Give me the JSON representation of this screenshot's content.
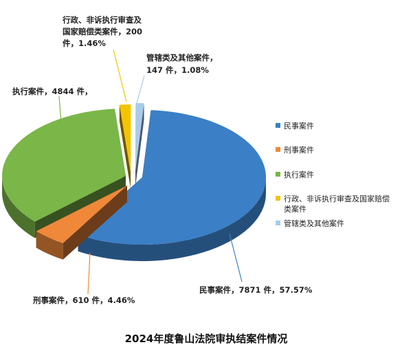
{
  "chart_data": {
    "type": "pie",
    "title": "2024年度鲁山法院审执结案件情况",
    "slices": [
      {
        "name": "民事案件",
        "value": 7871,
        "percent": 57.57,
        "color": "#3b7fc6",
        "label_lines": [
          "民事案件，7871 件，57.57%"
        ]
      },
      {
        "name": "刑事案件",
        "value": 610,
        "percent": 4.46,
        "color": "#f0883a",
        "label_lines": [
          "刑事案件，610 件，4.46%"
        ]
      },
      {
        "name": "执行案件",
        "value": 4844,
        "percent": 35.43,
        "color": "#7ab648",
        "label_lines": [
          "执行案件，4844 件，"
        ]
      },
      {
        "name": "行政、非诉执行审查及国家赔偿类案件",
        "value": 200,
        "percent": 1.46,
        "color": "#f5c400",
        "label_lines": [
          "行政、非诉执行审查及",
          "国家赔偿类案件，200",
          "件，1.46%"
        ]
      },
      {
        "name": "管辖类及其他案件",
        "value": 147,
        "percent": 1.08,
        "color": "#a9cbec",
        "label_lines": [
          "管辖类及其他案件，",
          "147 件，1.08%"
        ]
      }
    ],
    "legend": {
      "placement": "right",
      "entries": [
        {
          "lines": [
            "民事案件"
          ],
          "color": "#3b7fc6"
        },
        {
          "lines": [
            "刑事案件"
          ],
          "color": "#f0883a"
        },
        {
          "lines": [
            "执行案件"
          ],
          "color": "#7ab648"
        },
        {
          "lines": [
            "行政、非诉执行审查及国家赔偿",
            "类案件"
          ],
          "color": "#f5c400"
        },
        {
          "lines": [
            "管辖类及其他案件"
          ],
          "color": "#a9cbec"
        }
      ]
    }
  }
}
